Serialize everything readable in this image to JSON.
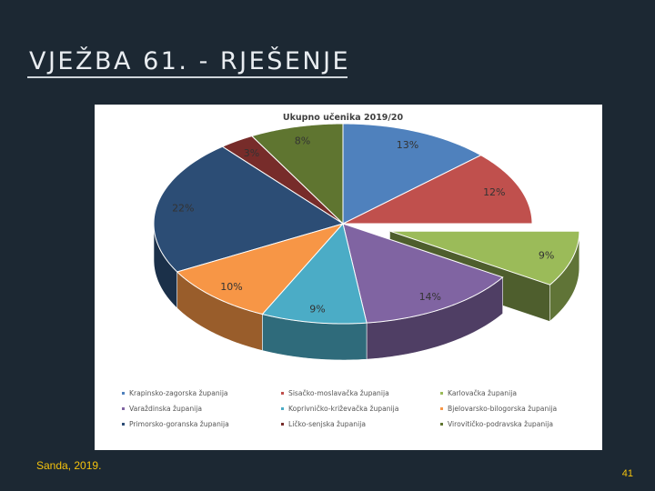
{
  "slide": {
    "title": "VJEŽBA 61. - RJEŠENJE",
    "author": "Sanda, 2019.",
    "page_number": "41"
  },
  "chart_data": {
    "type": "pie",
    "title": "Ukupno učenika 2019/20",
    "three_d": true,
    "exploded_slice": "Bjelovarsko-bilogorska županija",
    "legend_position": "bottom",
    "slices": [
      {
        "name": "Krapinsko-zagorska županija",
        "value": 13,
        "label": "13%",
        "color": "#4f81bd"
      },
      {
        "name": "Sisačko-moslavačka županija",
        "value": 12,
        "label": "12%",
        "color": "#c0504d"
      },
      {
        "name": "Karlovačka županija",
        "value": 9,
        "label": "9%",
        "color": "#9bbb59"
      },
      {
        "name": "Varaždinska županija",
        "value": 14,
        "label": "14%",
        "color": "#8064a2"
      },
      {
        "name": "Koprivničko-križevačka županija",
        "value": 9,
        "label": "9%",
        "color": "#4bacc6"
      },
      {
        "name": "Bjelovarsko-bilogorska županija",
        "value": 10,
        "label": "10%",
        "color": "#f79646"
      },
      {
        "name": "Primorsko-goranska županija",
        "value": 22,
        "label": "22%",
        "color": "#2c4d75"
      },
      {
        "name": "Ličko-senjska županija",
        "value": 3,
        "label": "3%",
        "color": "#772c2a"
      },
      {
        "name": "Virovitičko-podravska županija",
        "value": 8,
        "label": "8%",
        "color": "#5f7530"
      }
    ],
    "legend_order": [
      "Krapinsko-zagorska županija",
      "Sisačko-moslavačka županija",
      "Karlovačka županija",
      "Varaždinska županija",
      "Koprivničko-križevačka županija",
      "Bjelovarsko-bilogorska županija",
      "Primorsko-goranska županija",
      "Ličko-senjska županija",
      "Virovitičko-podravska županija"
    ]
  }
}
